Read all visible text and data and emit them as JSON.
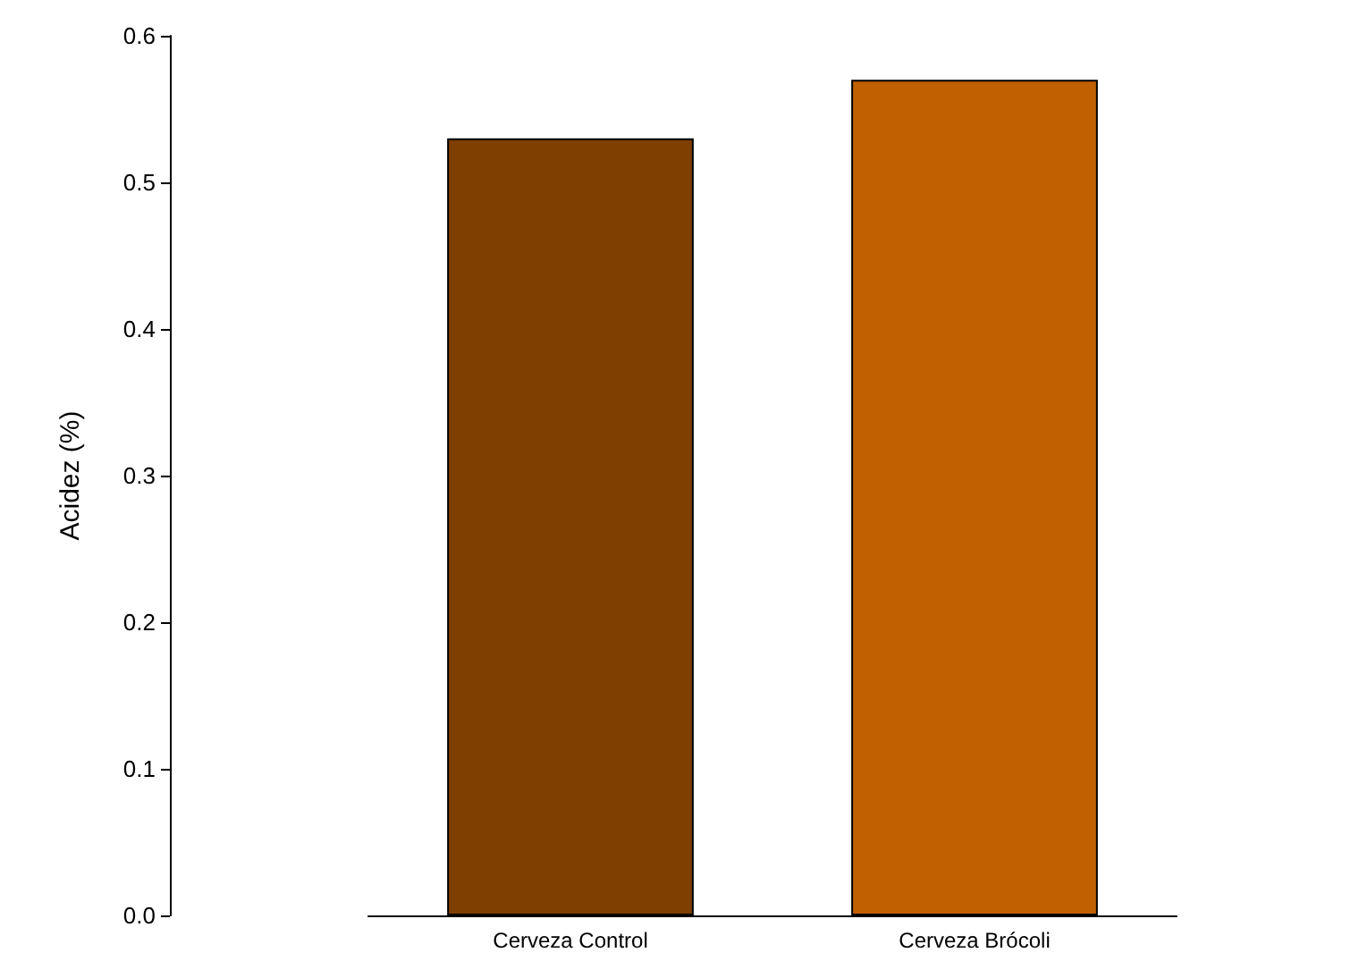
{
  "chart_data": {
    "type": "bar",
    "ylabel": "Acidez (%)",
    "categories": [
      "Cerveza Control",
      "Cerveza Brócoli"
    ],
    "values": [
      0.53,
      0.57
    ],
    "colors": [
      "#7f3f00",
      "#c06000"
    ],
    "ylim": [
      0,
      0.6
    ],
    "yticks": [
      {
        "value": 0,
        "label": "0.0"
      },
      {
        "value": 0.1,
        "label": "0.1"
      },
      {
        "value": 0.2,
        "label": "0.2"
      },
      {
        "value": 0.3,
        "label": "0.3"
      },
      {
        "value": 0.4,
        "label": "0.4"
      },
      {
        "value": 0.5,
        "label": "0.5"
      },
      {
        "value": 0.6,
        "label": "0.6"
      }
    ],
    "grid": false
  }
}
